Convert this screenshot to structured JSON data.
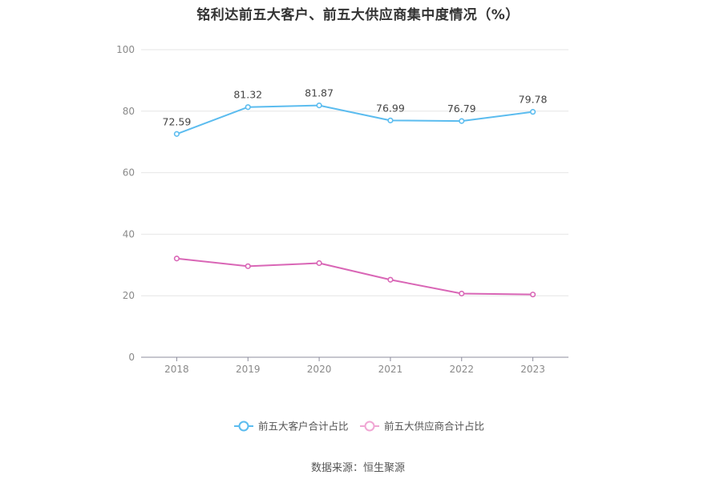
{
  "title": "铭利达前五大客户、前五大供应商集中度情况（%）",
  "source": "数据来源：恒生聚源",
  "colors": {
    "customers": "#5bbcef",
    "suppliers": "#d966b6",
    "suppliers_legend": "#f0a6d4",
    "grid": "#e6e6e6",
    "axis": "#8c8c9c",
    "tick_text": "#8a8a8a",
    "label_text": "#444444"
  },
  "chart_data": {
    "type": "line",
    "title": "铭利达前五大客户、前五大供应商集中度情况（%）",
    "xlabel": "",
    "ylabel": "",
    "x": [
      "2018",
      "2019",
      "2020",
      "2021",
      "2022",
      "2023"
    ],
    "ylim": [
      0,
      100
    ],
    "yticks": [
      "0",
      "20",
      "40",
      "60",
      "80",
      "100"
    ],
    "grid": true,
    "legend_position": "bottom",
    "series": [
      {
        "name": "前五大客户合计占比",
        "values": [
          72.59,
          81.32,
          81.87,
          76.99,
          76.79,
          79.78
        ],
        "labels": [
          "72.59",
          "81.32",
          "81.87",
          "76.99",
          "76.79",
          "79.78"
        ],
        "show_labels": true
      },
      {
        "name": "前五大供应商合计占比",
        "values": [
          32.1,
          29.6,
          30.6,
          25.2,
          20.7,
          20.4
        ],
        "show_labels": false
      }
    ]
  }
}
